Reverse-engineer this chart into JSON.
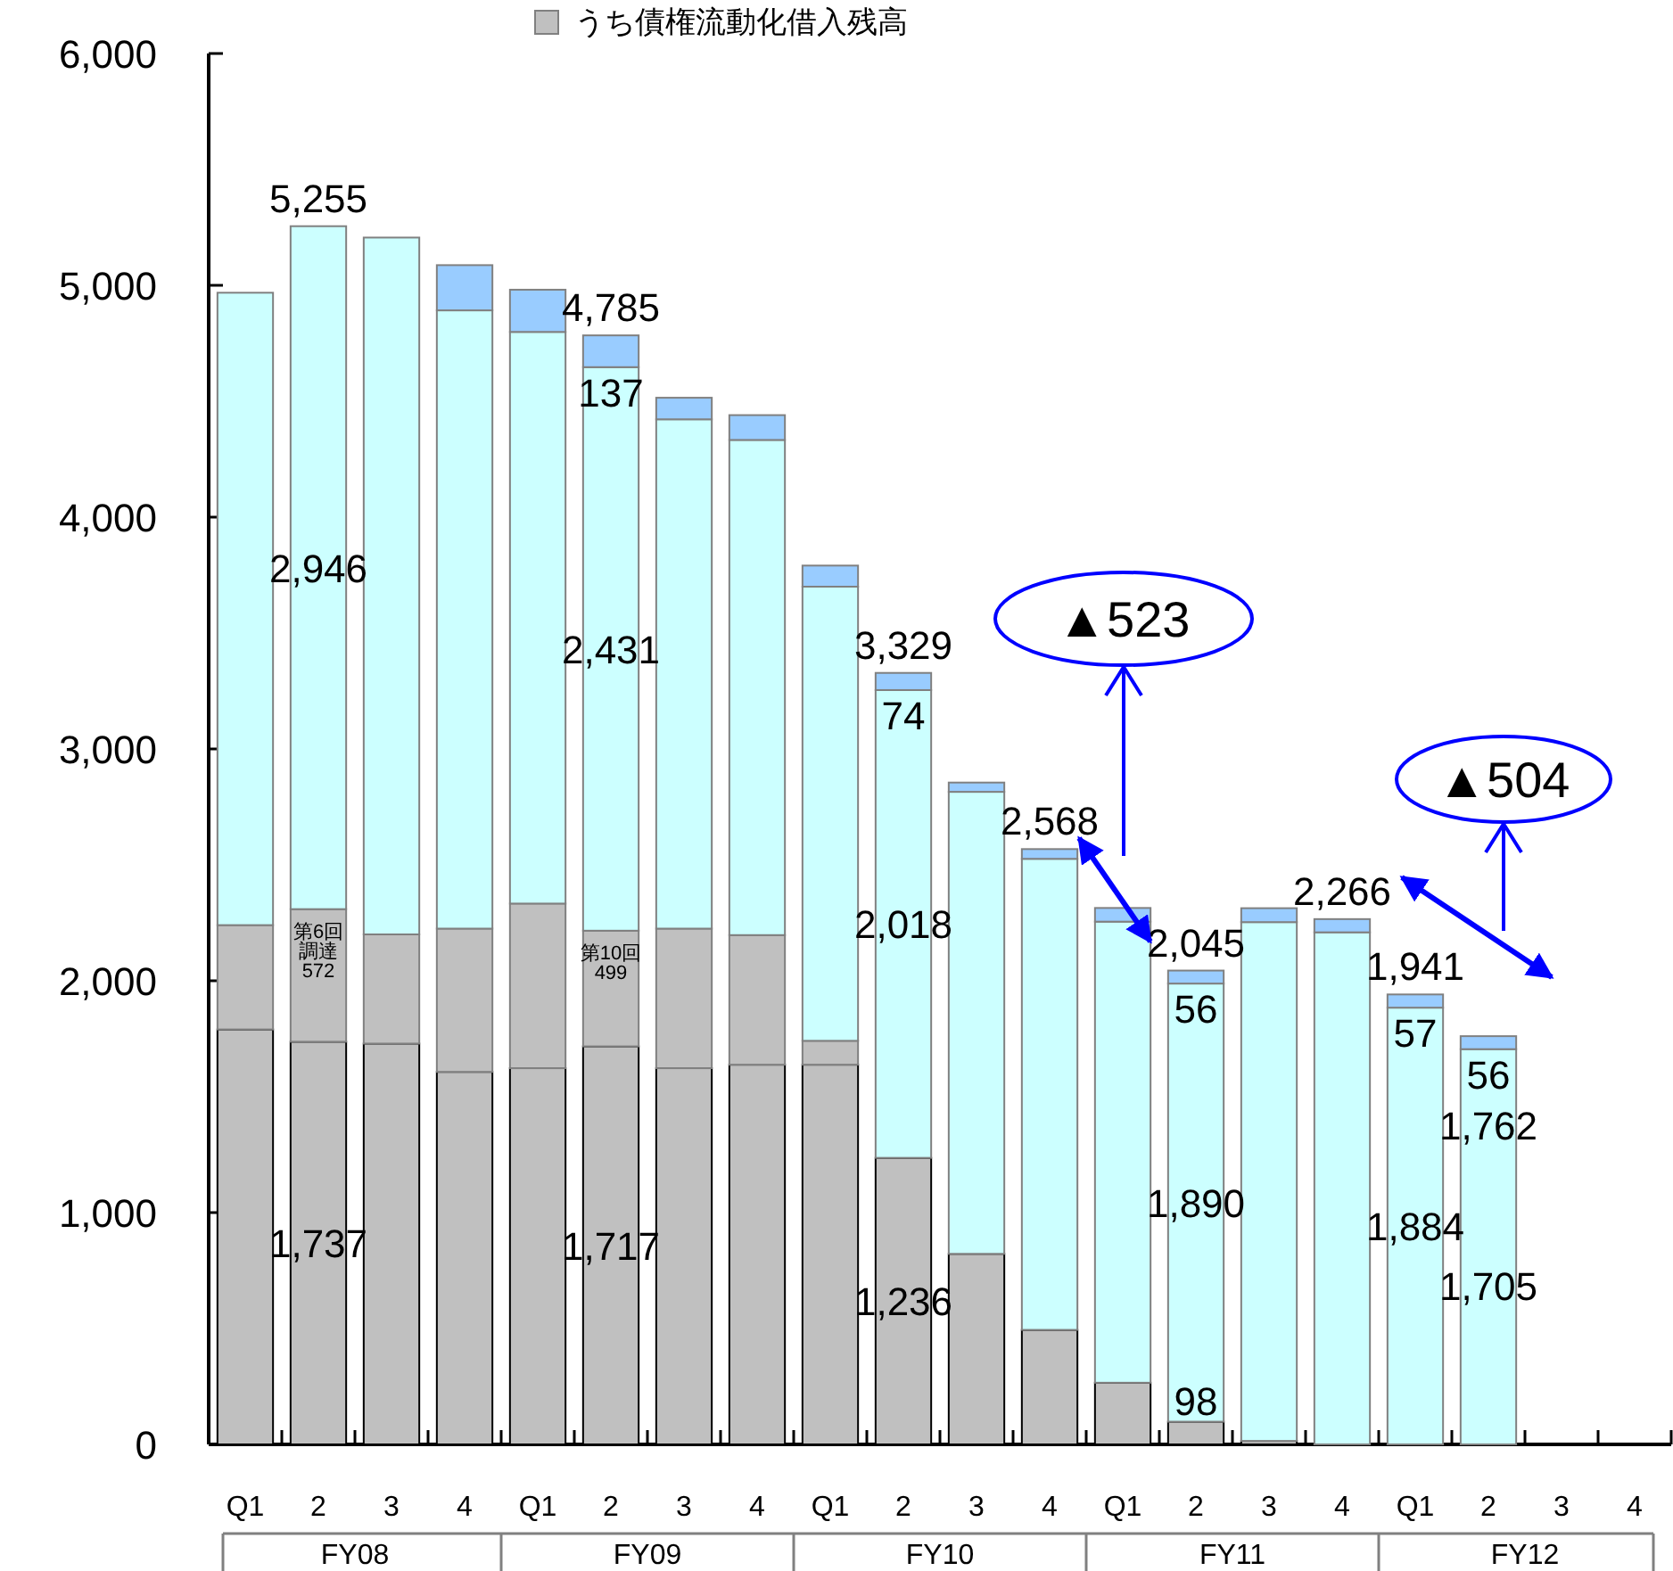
{
  "chart_data": {
    "type": "bar",
    "stacked": true,
    "legend": "top",
    "categories": [
      "Q1",
      "2",
      "3",
      "4",
      "Q1",
      "2",
      "3",
      "4",
      "Q1",
      "2",
      "3",
      "4",
      "Q1",
      "2",
      "3",
      "4",
      "Q1",
      "2",
      "3",
      "4"
    ],
    "series": [
      {
        "name": "うち債権流動化借入残高",
        "color": "#c0c0c0",
        "values": [
          1790,
          1737,
          1729,
          1607,
          1623,
          1717,
          1623,
          1638,
          1638,
          1236,
          822,
          494,
          266,
          98,
          15,
          0,
          0,
          0,
          null,
          null
        ],
        "value_labels": [
          null,
          "1,737",
          null,
          null,
          null,
          "1,717",
          null,
          null,
          null,
          "1,236",
          null,
          null,
          null,
          "98",
          null,
          null,
          null,
          null,
          null,
          null
        ]
      },
      {
        "color": "#c0c0c0",
        "values": [
          450,
          572,
          471,
          618,
          710,
          499,
          602,
          559,
          103,
          0,
          0,
          0,
          0,
          0,
          0,
          0,
          0,
          0,
          null,
          null
        ],
        "value_labels": [
          null,
          "第6回調達\n572",
          null,
          null,
          null,
          "第10回\n499",
          null,
          null,
          null,
          null,
          null,
          null,
          null,
          null,
          null,
          null,
          null,
          null,
          null,
          null
        ]
      },
      {
        "color": "#ccffff",
        "values": [
          2728,
          2946,
          3006,
          2667,
          2466,
          2431,
          2197,
          2136,
          1959,
          2018,
          1993,
          2032,
          1989,
          1890,
          2238,
          2209,
          1884,
          1705,
          null,
          null
        ],
        "value_labels": [
          null,
          "2,946",
          null,
          null,
          null,
          "2,431",
          null,
          null,
          null,
          "2,018",
          null,
          null,
          null,
          "1,890",
          null,
          null,
          "1,884",
          "1,705",
          null,
          null
        ]
      },
      {
        "color": "#99ccff",
        "values": [
          0,
          0,
          0,
          195,
          182,
          137,
          93,
          107,
          91,
          74,
          40,
          42,
          59,
          56,
          60,
          57,
          57,
          56,
          null,
          null
        ],
        "value_labels": [
          null,
          null,
          null,
          null,
          null,
          "137",
          null,
          null,
          null,
          "74",
          null,
          null,
          null,
          "56",
          null,
          null,
          "57",
          "56",
          null,
          null
        ]
      }
    ],
    "totals": [
      null,
      "5,255",
      null,
      null,
      null,
      "4,785",
      null,
      null,
      null,
      "3,329",
      null,
      "2,568",
      null,
      "2,045",
      null,
      "2,266",
      "1,941",
      "1,762",
      null,
      null
    ],
    "ylim": [
      0,
      6000
    ],
    "yticks": [
      {
        "value": 0,
        "label": "0"
      },
      {
        "value": 1000,
        "label": "1,000"
      },
      {
        "value": 2000,
        "label": "2,000"
      },
      {
        "value": 3000,
        "label": "3,000"
      },
      {
        "value": 4000,
        "label": "4,000"
      },
      {
        "value": 5000,
        "label": "5,000"
      },
      {
        "value": 6000,
        "label": "6,000"
      }
    ],
    "annotations": [
      "▲523",
      "▲504",
      "FY08",
      "FY09",
      "FY10",
      "FY11",
      "FY12"
    ]
  }
}
